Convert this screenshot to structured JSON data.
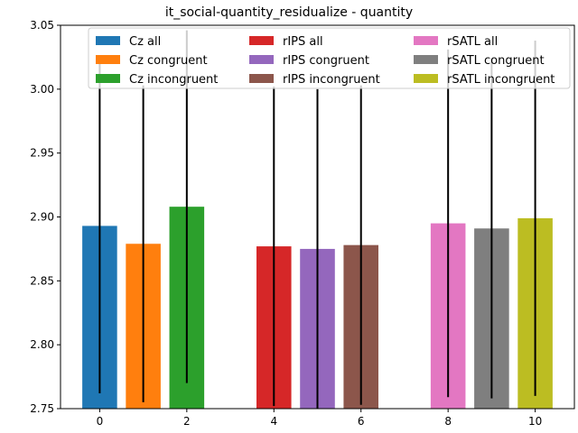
{
  "chart_data": {
    "type": "bar",
    "title": "it_social-quantity_residualize - quantity",
    "xlabel": "",
    "ylabel": "",
    "xlim": [
      -0.9,
      10.9
    ],
    "ylim": [
      2.75,
      3.05
    ],
    "xticks": [
      0,
      2,
      4,
      6,
      8,
      10
    ],
    "yticks": [
      2.75,
      2.8,
      2.85,
      2.9,
      2.95,
      3.0,
      3.05
    ],
    "ytick_labels": [
      "2.75",
      "2.80",
      "2.85",
      "2.90",
      "2.95",
      "3.00",
      "3.05"
    ],
    "grid": false,
    "legend_position": "top",
    "legend_columns": 3,
    "bar_width": 0.8,
    "series": [
      {
        "name": "Cz all",
        "x": 0,
        "value": 2.893,
        "err_low": 2.762,
        "err_high": 3.026,
        "color": "#1f77b4"
      },
      {
        "name": "Cz congruent",
        "x": 1,
        "value": 2.879,
        "err_low": 2.755,
        "err_high": 3.003,
        "color": "#ff7f0e"
      },
      {
        "name": "Cz incongruent",
        "x": 2,
        "value": 2.908,
        "err_low": 2.77,
        "err_high": 3.046,
        "color": "#2ca02c"
      },
      {
        "name": "rIPS all",
        "x": 4,
        "value": 2.877,
        "err_low": 2.752,
        "err_high": 3.002,
        "color": "#d62728"
      },
      {
        "name": "rIPS congruent",
        "x": 5,
        "value": 2.875,
        "err_low": 2.75,
        "err_high": 3.0,
        "color": "#9467bd"
      },
      {
        "name": "rIPS incongruent",
        "x": 6,
        "value": 2.878,
        "err_low": 2.753,
        "err_high": 3.003,
        "color": "#8c564b"
      },
      {
        "name": "rSATL all",
        "x": 8,
        "value": 2.895,
        "err_low": 2.759,
        "err_high": 3.031,
        "color": "#e377c2"
      },
      {
        "name": "rSATL congruent",
        "x": 9,
        "value": 2.891,
        "err_low": 2.758,
        "err_high": 3.024,
        "color": "#7f7f7f"
      },
      {
        "name": "rSATL incongruent",
        "x": 10,
        "value": 2.899,
        "err_low": 2.76,
        "err_high": 3.038,
        "color": "#bcbd22"
      }
    ]
  }
}
